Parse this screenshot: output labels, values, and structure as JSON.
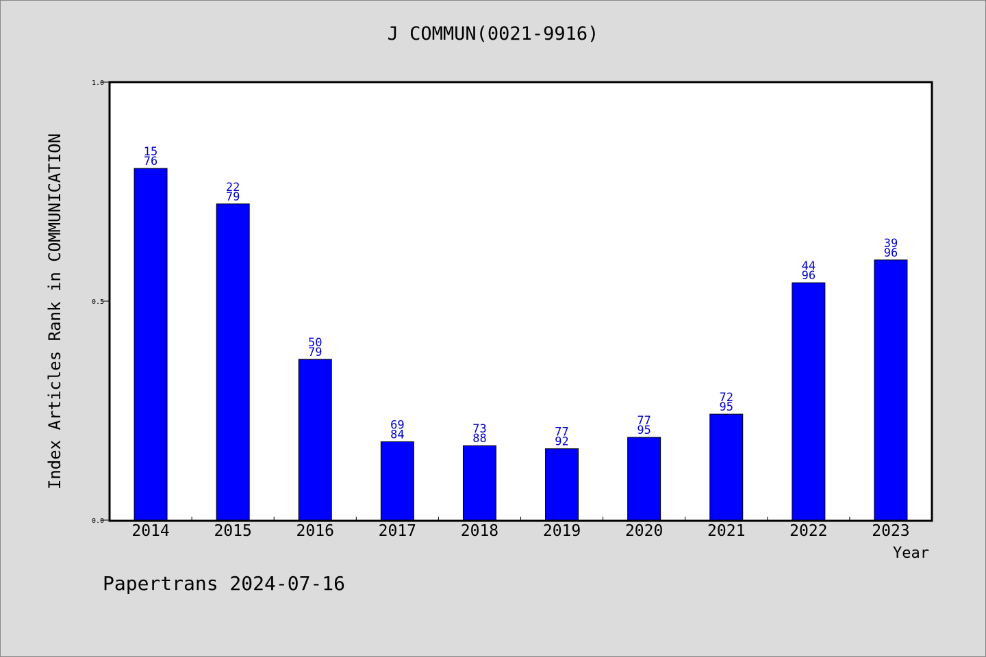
{
  "title": "J COMMUN(0021-9916)",
  "footer": "Papertrans 2024-07-16",
  "chart_data": {
    "type": "bar",
    "title": "J COMMUN(0021-9916)",
    "xlabel": "Year",
    "ylabel": "Index Articles Rank in COMMUNICATION",
    "categories": [
      "2014",
      "2015",
      "2016",
      "2017",
      "2018",
      "2019",
      "2020",
      "2021",
      "2022",
      "2023"
    ],
    "values": [
      0.803,
      0.722,
      0.367,
      0.179,
      0.17,
      0.163,
      0.189,
      0.242,
      0.542,
      0.594
    ],
    "labels_top": [
      "15",
      "22",
      "50",
      "69",
      "73",
      "77",
      "77",
      "72",
      "44",
      "39"
    ],
    "labels_bottom": [
      "76",
      "79",
      "79",
      "84",
      "88",
      "92",
      "95",
      "95",
      "96",
      "96"
    ],
    "yticks": [
      "0.0",
      "0.5",
      "1.0"
    ],
    "ylim": [
      0,
      1
    ],
    "bar_color": "#0000ff",
    "label_color": "#0000cc",
    "grid": false
  }
}
